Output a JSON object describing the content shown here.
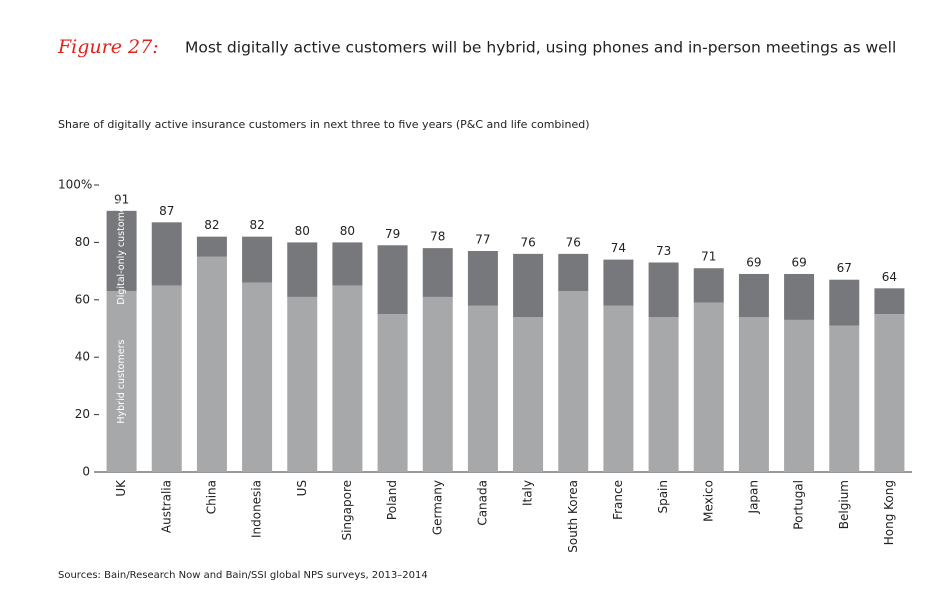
{
  "chart_data": {
    "type": "stacked_bar",
    "figure_label": "Figure 27:",
    "title": "Most digitally active customers will be hybrid, using phones and in-person meetings as well",
    "subtitle": "Share of digitally active insurance customers in next three to five years (P&C and life combined)",
    "source": "Sources: Bain/Research Now and Bain/SSI global NPS surveys, 2013–2014",
    "categories": [
      "UK",
      "Australia",
      "China",
      "Indonesia",
      "US",
      "Singapore",
      "Poland",
      "Germany",
      "Canada",
      "Italy",
      "South Korea",
      "France",
      "Spain",
      "Mexico",
      "Japan",
      "Portugal",
      "Belgium",
      "Hong Kong"
    ],
    "series": [
      {
        "name": "Hybrid customers",
        "color": "#a7a8aa",
        "values": [
          63,
          65,
          75,
          66,
          61,
          65,
          55,
          61,
          58,
          54,
          63,
          58,
          54,
          59,
          54,
          53,
          51,
          55
        ]
      },
      {
        "name": "Digital-only customers",
        "color": "#77787b",
        "values": [
          28,
          22,
          7,
          16,
          19,
          15,
          24,
          17,
          19,
          22,
          13,
          16,
          19,
          12,
          15,
          16,
          16,
          9
        ]
      }
    ],
    "totals": [
      91,
      87,
      82,
      82,
      80,
      80,
      79,
      78,
      77,
      76,
      76,
      74,
      73,
      71,
      69,
      69,
      67,
      64
    ],
    "ylim": [
      0,
      100
    ],
    "yticks": [
      0,
      20,
      40,
      60,
      80,
      {
        "value": 100,
        "label": "100%"
      }
    ]
  }
}
